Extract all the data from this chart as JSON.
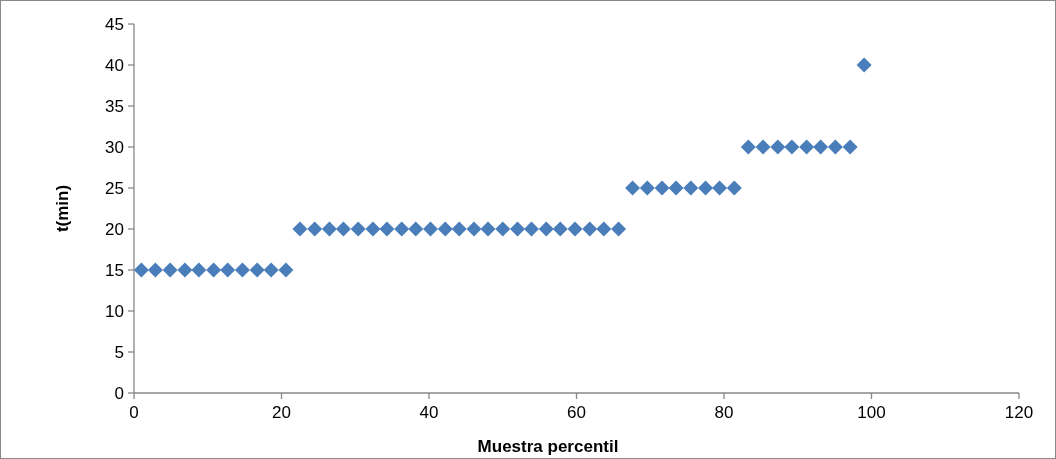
{
  "chart_data": {
    "type": "scatter",
    "xlabel": "Muestra percentil",
    "ylabel": "t(min)",
    "marker": "diamond",
    "grid": false,
    "xlim": [
      0,
      120
    ],
    "xticks": [
      0,
      20,
      40,
      60,
      80,
      100,
      120
    ],
    "ylim": [
      0,
      45
    ],
    "yticks": [
      0,
      5,
      10,
      15,
      20,
      25,
      30,
      35,
      40,
      45
    ],
    "series": [
      {
        "color": "#4a7ebb",
        "x": [
          1.0,
          2.9,
          4.9,
          6.9,
          8.8,
          10.8,
          12.7,
          14.7,
          16.7,
          18.6,
          20.6,
          22.5,
          24.5,
          26.5,
          28.4,
          30.4,
          32.4,
          34.3,
          36.3,
          38.2,
          40.2,
          42.2,
          44.1,
          46.1,
          48.0,
          50.0,
          52.0,
          53.9,
          55.9,
          57.8,
          59.8,
          61.8,
          63.7,
          65.7,
          67.6,
          69.6,
          71.6,
          73.5,
          75.5,
          77.5,
          79.4,
          81.4,
          83.3,
          85.3,
          87.3,
          89.2,
          91.2,
          93.1,
          95.1,
          97.1,
          99.0
        ],
        "values": [
          15,
          15,
          15,
          15,
          15,
          15,
          15,
          15,
          15,
          15,
          15,
          20,
          20,
          20,
          20,
          20,
          20,
          20,
          20,
          20,
          20,
          20,
          20,
          20,
          20,
          20,
          20,
          20,
          20,
          20,
          20,
          20,
          20,
          20,
          25,
          25,
          25,
          25,
          25,
          25,
          25,
          25,
          30,
          30,
          30,
          30,
          30,
          30,
          30,
          30,
          40
        ]
      }
    ]
  }
}
